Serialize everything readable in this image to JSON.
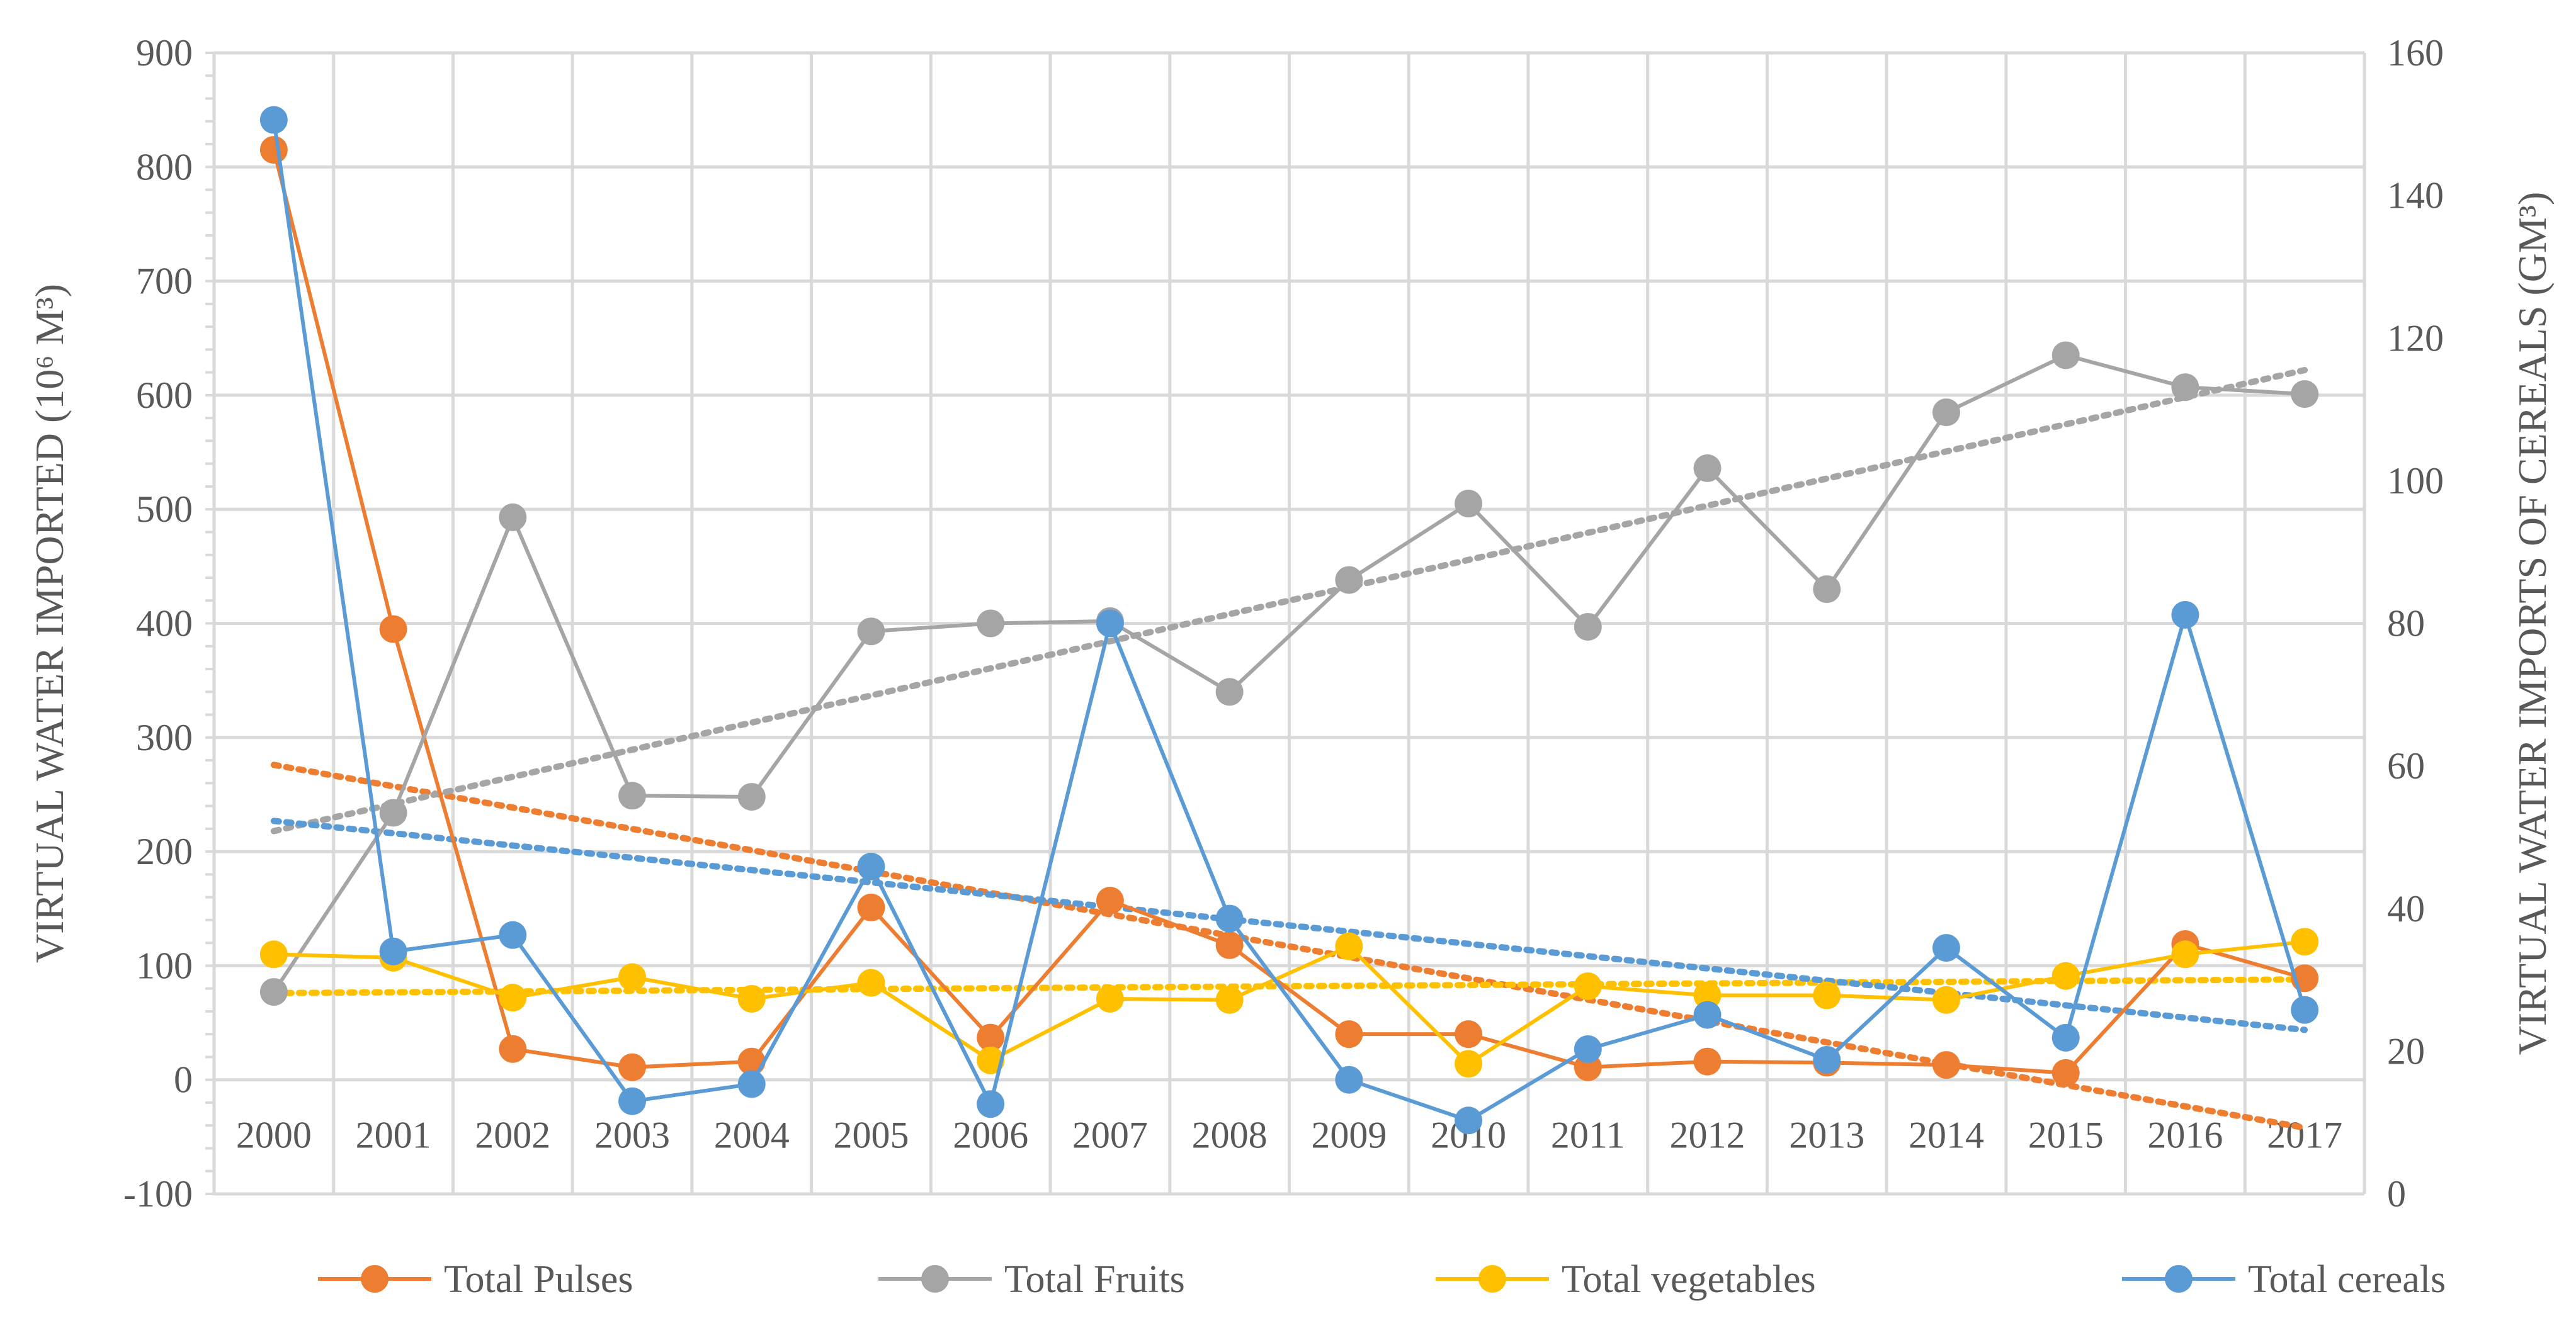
{
  "chart_data": {
    "type": "line",
    "title": "",
    "xlabel": "",
    "ylabel_left": "VIRTUAL WATER IMPORTED (10⁶ M³)",
    "ylabel_right": "VIRTUAL WATER IMPORTS OF CEREALS (GM³)",
    "categories": [
      "2000",
      "2001",
      "2002",
      "2003",
      "2004",
      "2005",
      "2006",
      "2007",
      "2008",
      "2009",
      "2010",
      "2011",
      "2012",
      "2013",
      "2014",
      "2015",
      "2016",
      "2017"
    ],
    "left_axis": {
      "min": -100,
      "max": 900,
      "step": 100
    },
    "right_axis": {
      "min": 0,
      "max": 160,
      "step": 20
    },
    "grid": true,
    "legend_position": "bottom",
    "series": [
      {
        "name": "Total Pulses",
        "axis": "left",
        "color": "#ED7D31",
        "values": [
          815,
          395,
          27,
          11,
          16,
          151,
          37,
          157,
          118,
          40,
          40,
          11,
          16,
          15,
          13,
          6,
          119,
          89
        ],
        "trendline": {
          "start": 276,
          "end": -42
        }
      },
      {
        "name": "Total Fruits",
        "axis": "left",
        "color": "#A5A5A5",
        "values": [
          77,
          234,
          493,
          249,
          248,
          393,
          400,
          402,
          340,
          438,
          505,
          397,
          536,
          430,
          585,
          635,
          607,
          601
        ],
        "trendline": {
          "start": 218,
          "end": 622
        }
      },
      {
        "name": "Total vegetables",
        "axis": "left",
        "color": "#FFC000",
        "values": [
          110,
          107,
          72,
          90,
          71,
          85,
          17,
          71,
          70,
          117,
          14,
          82,
          74,
          74,
          70,
          91,
          110,
          121
        ],
        "trendline": {
          "start": 76,
          "end": 88
        }
      },
      {
        "name": "Total cereals",
        "axis": "right",
        "color": "#5B9BD5",
        "values": [
          150.6,
          34.0,
          36.3,
          13.0,
          15.4,
          45.9,
          12.6,
          80.0,
          38.6,
          16.0,
          10.3,
          20.3,
          25.1,
          18.8,
          34.5,
          21.9,
          81.2,
          25.8
        ],
        "trendline": {
          "start": 52.3,
          "end": 23.0
        }
      }
    ]
  }
}
